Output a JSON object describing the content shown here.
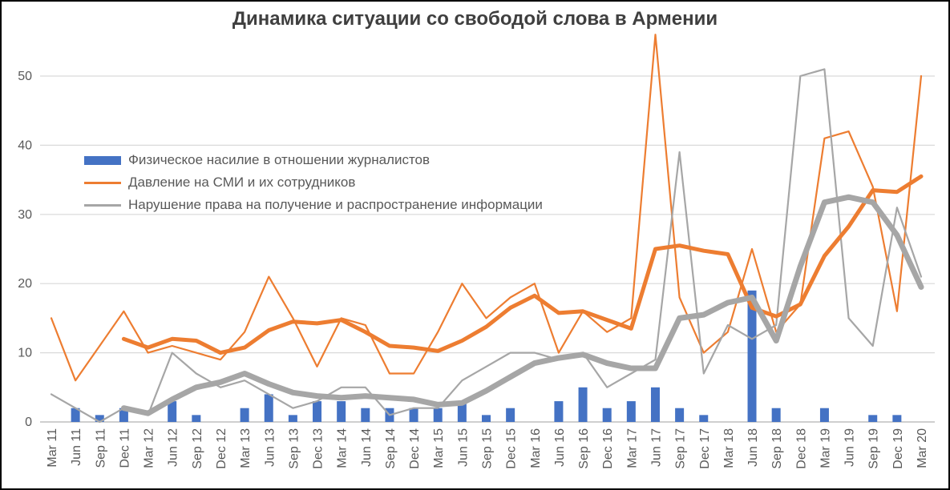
{
  "window": {
    "background": "#FFFFFF",
    "border_color": "#000000"
  },
  "chart_data": {
    "type": "bar",
    "subtype": "combo bar + line, Excel style",
    "title": "Динамика ситуации со свободой слова в Армении",
    "xlabel": "",
    "ylabel": "",
    "ylim": [
      0,
      50
    ],
    "grid": "horizontal",
    "gridline_color": "#D9D9D9",
    "axis_line_color": "#BFBFBF",
    "tick_label_color": "#595959",
    "title_color": "#3F3F3F",
    "legend_position": "inside upper-left",
    "x_tick_rotation": -90,
    "y_ticks": [
      0,
      10,
      20,
      30,
      40,
      50
    ],
    "categories": [
      "Mar 11",
      "Jun 11",
      "Sep 11",
      "Dec 11",
      "Mar 12",
      "Jun 12",
      "Sep 12",
      "Dec 12",
      "Mar 13",
      "Jun 13",
      "Sep 13",
      "Dec 13",
      "Mar 14",
      "Jun 14",
      "Sep 14",
      "Dec 14",
      "Mar 15",
      "Jun 15",
      "Sep 15",
      "Dec 15",
      "Mar 16",
      "Jun 16",
      "Sep 16",
      "Dec 16",
      "Mar 17",
      "Jun 17",
      "Sep 17",
      "Dec 17",
      "Mar 18",
      "Jun 18",
      "Sep 18",
      "Dec 18",
      "Mar 19",
      "Jun 19",
      "Sep 19",
      "Dec 19",
      "Mar 20"
    ],
    "series": [
      {
        "name": "Физическое насилие в отношении журналистов",
        "type": "bar",
        "color": "#4472C4",
        "values": [
          0,
          2,
          1,
          2,
          0,
          3,
          1,
          0,
          2,
          4,
          1,
          3,
          3,
          2,
          2,
          2,
          2,
          3,
          1,
          2,
          0,
          3,
          5,
          2,
          3,
          5,
          2,
          1,
          0,
          19,
          2,
          0,
          2,
          0,
          1,
          1,
          0
        ]
      },
      {
        "name": "Давление на СМИ и их сотрудников",
        "type": "line",
        "color": "#ED7D31",
        "line_width": 2.2,
        "values": [
          15,
          6,
          11,
          16,
          10,
          11,
          10,
          9,
          13,
          21,
          15,
          8,
          15,
          14,
          7,
          7,
          13,
          20,
          15,
          18,
          20,
          10,
          16,
          13,
          15,
          56,
          18,
          10,
          13,
          25,
          13,
          17,
          41,
          42,
          34,
          16,
          50
        ]
      },
      {
        "name": "Нарушение права на получение и распространение информации",
        "type": "line",
        "color": "#A6A6A6",
        "line_width": 2.2,
        "values": [
          4,
          2,
          0,
          2,
          1,
          10,
          7,
          5,
          6,
          4,
          2,
          3,
          5,
          5,
          1,
          2,
          2,
          6,
          8,
          10,
          10,
          9,
          10,
          5,
          7,
          9,
          39,
          7,
          14,
          12,
          14,
          50,
          51,
          15,
          11,
          31,
          21
        ]
      }
    ],
    "trendlines": [
      {
        "series_index": 1,
        "kind": "moving_average",
        "period": 4,
        "color": "#ED7D31",
        "line_width": 5
      },
      {
        "series_index": 2,
        "kind": "moving_average",
        "period": 4,
        "color": "#A6A6A6",
        "line_width": 7
      }
    ]
  }
}
